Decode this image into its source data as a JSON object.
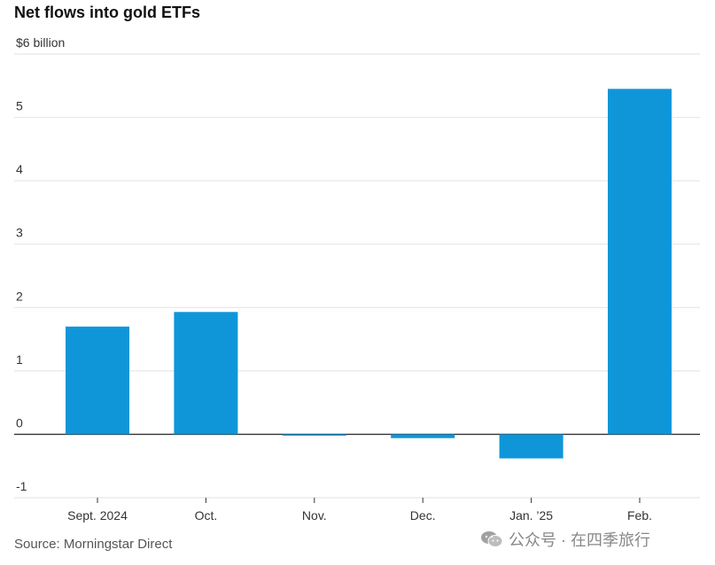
{
  "chart_data": {
    "type": "bar",
    "title": "Net flows into gold ETFs",
    "unit_label": "$6 billion",
    "categories": [
      "Sept. 2024",
      "Oct.",
      "Nov.",
      "Dec.",
      "Jan. ’25",
      "Feb."
    ],
    "values": [
      1.7,
      1.93,
      -0.02,
      -0.06,
      -0.38,
      5.45
    ],
    "ylim": [
      -1,
      6
    ],
    "yticks": [
      -1,
      0,
      1,
      2,
      3,
      4,
      5,
      6
    ],
    "ytick_labels": [
      "-1",
      "0",
      "1",
      "2",
      "3",
      "4",
      "5",
      "$6 billion"
    ],
    "grid": true,
    "bar_color": "#0f96d8"
  },
  "source": "Source: Morningstar Direct",
  "watermark": {
    "text": "公众号 · 在四季旅行",
    "icon": "wechat-icon"
  }
}
